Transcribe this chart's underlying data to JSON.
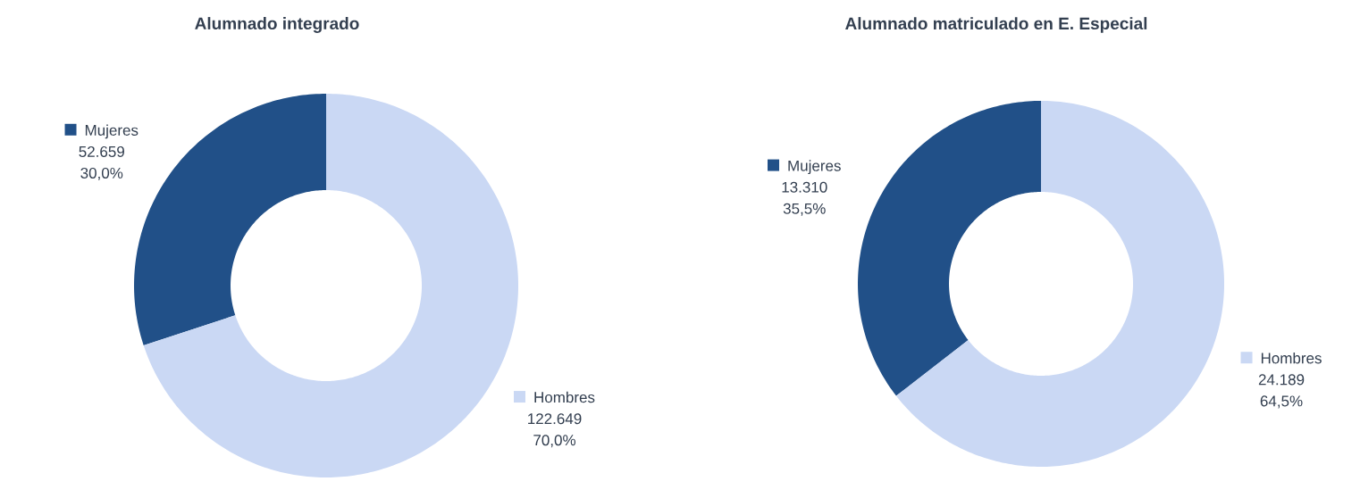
{
  "chart_data": [
    {
      "type": "donut",
      "title": "Alumnado integrado",
      "categories": [
        "Mujeres",
        "Hombres"
      ],
      "values": [
        52659,
        122649
      ],
      "colors": [
        "#215088",
        "#cad8f4"
      ],
      "value_labels": [
        "52.659",
        "122.649"
      ],
      "annotations": [
        "30,0%",
        "70,0%"
      ],
      "legend": "left"
    },
    {
      "type": "donut",
      "title": "Alumnado matriculado en E. Especial",
      "categories": [
        "Mujeres",
        "Hombres"
      ],
      "values": [
        13310,
        24189
      ],
      "colors": [
        "#215088",
        "#cad8f4"
      ],
      "value_labels": [
        "13.310",
        "24.189"
      ],
      "annotations": [
        "35,5%",
        "64,5%"
      ],
      "legend": "left"
    }
  ]
}
